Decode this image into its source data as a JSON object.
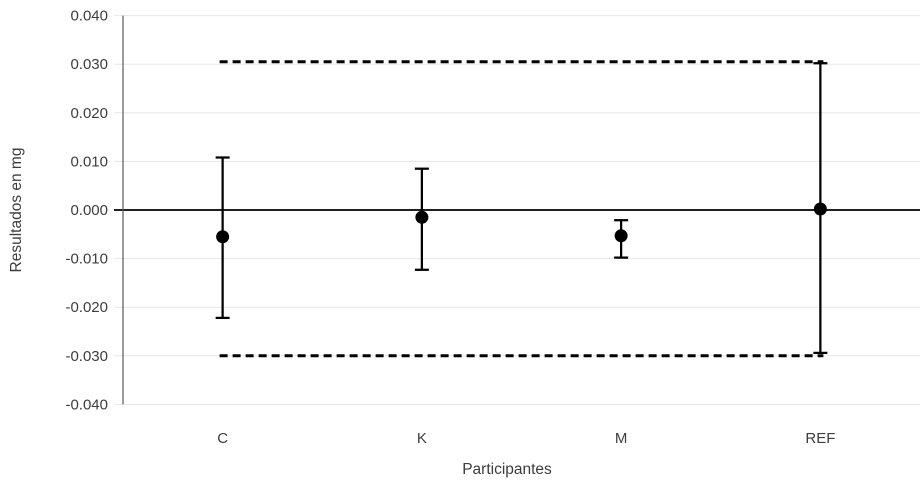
{
  "chart_data": {
    "type": "scatter",
    "subtype": "mean-with-error-bars",
    "title": "",
    "xlabel": "Participantes",
    "ylabel": "Resultados en mg",
    "categories": [
      "C",
      "K",
      "M",
      "REF"
    ],
    "points": [
      {
        "label": "C",
        "value": -0.0055,
        "upper": 0.0108,
        "lower": -0.0222
      },
      {
        "label": "K",
        "value": -0.0015,
        "upper": 0.0085,
        "lower": -0.0123
      },
      {
        "label": "M",
        "value": -0.0053,
        "upper": -0.0021,
        "lower": -0.0098
      },
      {
        "label": "REF",
        "value": 0.0002,
        "upper": 0.0302,
        "lower": -0.0294
      }
    ],
    "limit_lines": {
      "upper": 0.0305,
      "lower": -0.03,
      "style": "dashed"
    },
    "y_axis": {
      "min": -0.04,
      "max": 0.04,
      "step": 0.01,
      "tick_labels": [
        "0.040",
        "0.030",
        "0.020",
        "0.010",
        "0.000",
        "-0.010",
        "-0.020",
        "-0.030",
        "-0.040"
      ]
    },
    "grid": true,
    "legend": "none",
    "colors": {
      "marker": "#000000",
      "error_bar": "#000000",
      "limit_line": "#000000",
      "zero_line": "#000000",
      "grid": "#e7e7e7",
      "axis_line": "#595959",
      "text": "#3d3d3d",
      "background": "#ffffff"
    }
  }
}
